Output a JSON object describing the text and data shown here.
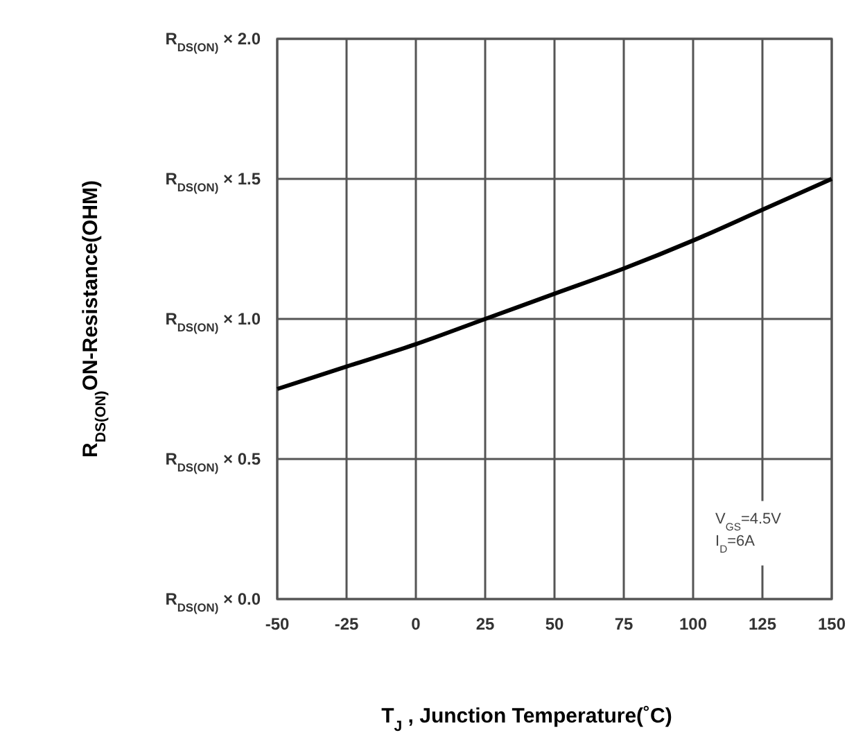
{
  "chart_data": {
    "type": "line",
    "xlabel": "T$_{J}$ , Junction Temperature(˚C)",
    "ylabel": "R$_{DS(ON)}$ON-Resistance(OHM)",
    "x": [
      -50,
      -25,
      0,
      25,
      50,
      75,
      100,
      125,
      150
    ],
    "series": [
      {
        "color": "#000000",
        "values": [
          0.75,
          0.83,
          0.91,
          1.0,
          1.09,
          1.18,
          1.28,
          1.39,
          1.5
        ]
      }
    ],
    "xlim": [
      -50,
      150
    ],
    "xticks": [
      -50,
      -25,
      0,
      25,
      50,
      75,
      100,
      125,
      150
    ],
    "ylim": [
      0,
      2
    ],
    "yticks": [
      {
        "value": 0,
        "label": "R$_{DS(ON)}$ × 0.0"
      },
      {
        "value": 0.5,
        "label": "R$_{DS(ON)}$ × 0.5"
      },
      {
        "value": 1,
        "label": "R$_{DS(ON)}$ × 1.0"
      },
      {
        "value": 1.5,
        "label": "R$_{DS(ON)}$ × 1.5"
      },
      {
        "value": 2,
        "label": "R$_{DS(ON)}$ × 2.0"
      }
    ],
    "grid": true,
    "marker": "none",
    "line_style": "solid",
    "annotations": [
      "V$_{GS}$=4.5V",
      "I$_{D}$=6A"
    ]
  }
}
